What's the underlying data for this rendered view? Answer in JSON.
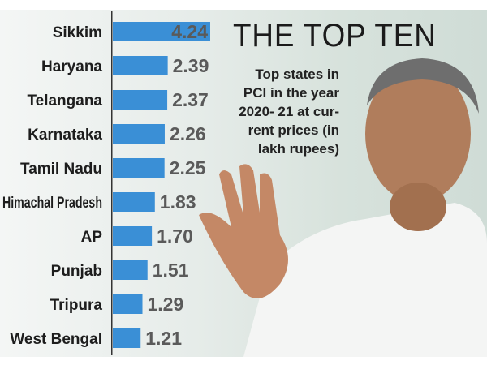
{
  "chart_data": {
    "type": "bar",
    "orientation": "horizontal",
    "title": "THE TOP TEN",
    "subtitle": "Top states in PCI in the year 2020- 21 at current prices (in lakh rupees)",
    "categories": [
      "Sikkim",
      "Haryana",
      "Telangana",
      "Karnataka",
      "Tamil Nadu",
      "Himachal Pradesh",
      "AP",
      "Punjab",
      "Tripura",
      "West Bengal"
    ],
    "values": [
      4.24,
      2.39,
      2.37,
      2.26,
      2.25,
      1.83,
      1.7,
      1.51,
      1.29,
      1.21
    ],
    "value_labels": [
      "4.24",
      "2.39",
      "2.37",
      "2.26",
      "2.25",
      "1.83",
      "1.70",
      "1.51",
      "1.29",
      "1.21"
    ],
    "bar_color": "#3a8fd6",
    "grid": false,
    "xlabel": "",
    "ylabel": ""
  },
  "subtitle_lines": [
    "Top states in",
    "PCI in the year",
    "2020- 21 at cur-",
    "rent prices (in",
    "lakh rupees)"
  ]
}
